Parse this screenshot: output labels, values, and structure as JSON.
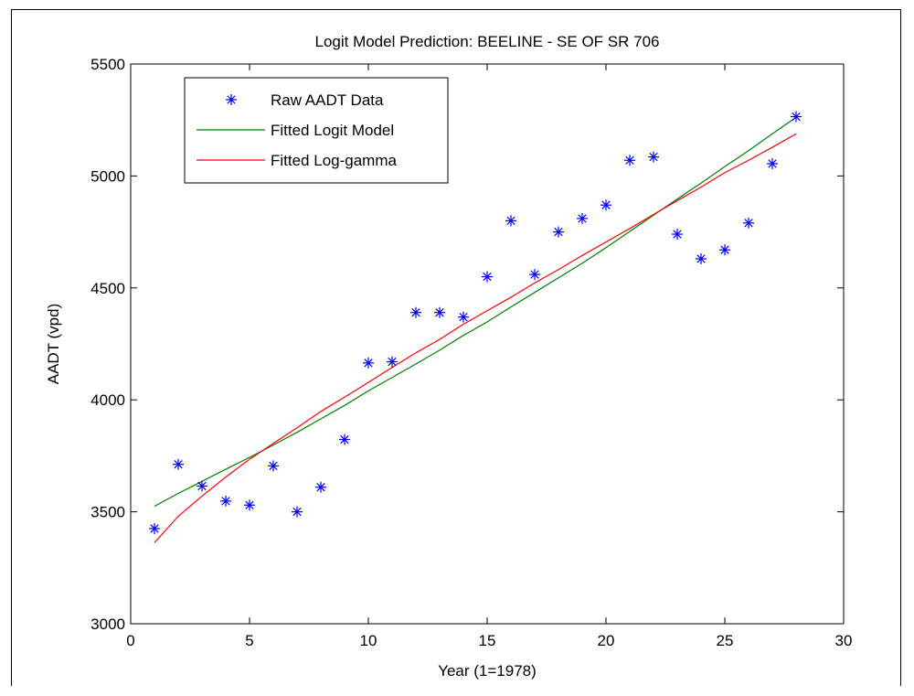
{
  "chart_data": {
    "type": "line",
    "title": "Logit Model Prediction: BEELINE - SE OF SR 706",
    "xlabel": "Year (1=1978)",
    "ylabel": "AADT (vpd)",
    "xlim": [
      0,
      30
    ],
    "ylim": [
      3000,
      5500
    ],
    "xticks": [
      0,
      5,
      10,
      15,
      20,
      25,
      30
    ],
    "yticks": [
      3000,
      3500,
      4000,
      4500,
      5000,
      5500
    ],
    "grid": false,
    "legend_position": "top-left",
    "series": [
      {
        "name": "Raw AADT Data",
        "kind": "scatter",
        "marker": "asterisk",
        "color": "#0000ff",
        "x": [
          1,
          2,
          3,
          4,
          5,
          6,
          7,
          8,
          9,
          10,
          11,
          12,
          13,
          14,
          15,
          16,
          17,
          18,
          19,
          20,
          21,
          22,
          23,
          24,
          25,
          26,
          27,
          28
        ],
        "y": [
          3425,
          3712,
          3615,
          3548,
          3530,
          3705,
          3500,
          3610,
          3823,
          4165,
          4170,
          4390,
          4390,
          4370,
          4550,
          4800,
          4560,
          4750,
          4810,
          4870,
          5070,
          5085,
          4740,
          4630,
          4670,
          4790,
          5055,
          5265
        ]
      },
      {
        "name": "Fitted Logit Model",
        "kind": "line",
        "color": "#008000",
        "x": [
          1,
          2,
          3,
          4,
          5,
          6,
          7,
          8,
          9,
          10,
          11,
          12,
          13,
          14,
          15,
          16,
          17,
          18,
          19,
          20,
          21,
          22,
          23,
          24,
          25,
          26,
          27,
          28
        ],
        "y": [
          3525,
          3582,
          3636,
          3690,
          3743,
          3798,
          3855,
          3915,
          3975,
          4040,
          4100,
          4160,
          4222,
          4288,
          4348,
          4415,
          4480,
          4545,
          4610,
          4680,
          4752,
          4825,
          4897,
          4968,
          5042,
          5113,
          5188,
          5262
        ]
      },
      {
        "name": "Fitted Log-gamma",
        "kind": "line",
        "color": "#ff0000",
        "x": [
          1,
          2,
          3,
          4,
          5,
          6,
          7,
          8,
          9,
          10,
          11,
          12,
          13,
          14,
          15,
          16,
          17,
          18,
          19,
          20,
          21,
          22,
          23,
          24,
          25,
          26,
          27,
          28
        ],
        "y": [
          3362,
          3480,
          3570,
          3655,
          3735,
          3805,
          3875,
          3948,
          4012,
          4078,
          4145,
          4210,
          4270,
          4338,
          4398,
          4458,
          4522,
          4582,
          4645,
          4705,
          4765,
          4828,
          4890,
          4950,
          5015,
          5070,
          5128,
          5188
        ]
      }
    ]
  }
}
